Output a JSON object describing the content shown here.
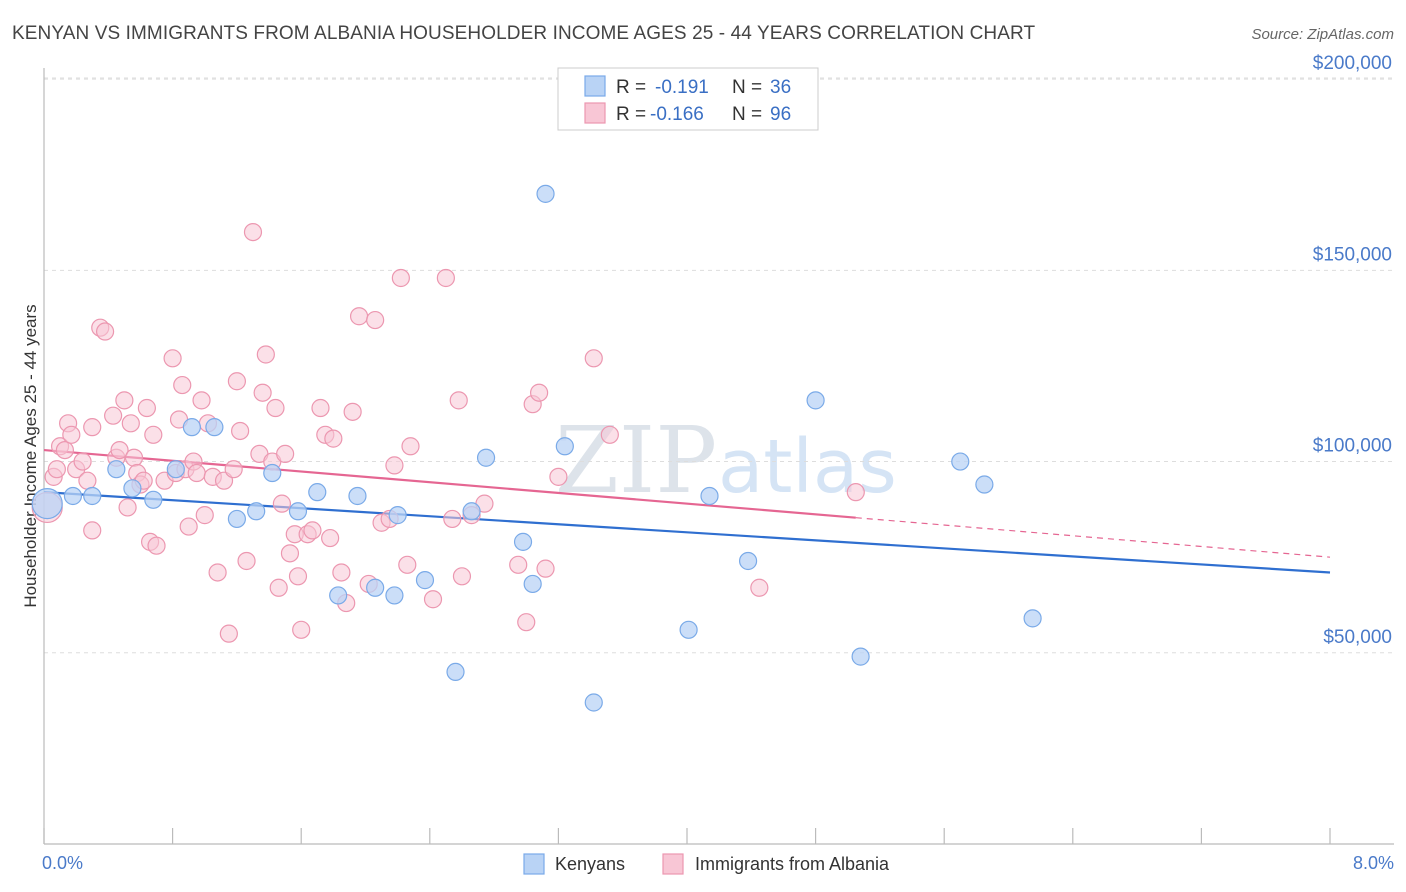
{
  "chart_data": {
    "type": "scatter",
    "title": "KENYAN VS IMMIGRANTS FROM ALBANIA HOUSEHOLDER INCOME AGES 25 - 44 YEARS CORRELATION CHART",
    "source": "Source: ZipAtlas.com",
    "ylabel": "Householder Income Ages 25 - 44 years",
    "xlabel": "",
    "xlim": [
      0,
      8
    ],
    "ylim": [
      0,
      205000
    ],
    "x_tick_labels": {
      "left": "0.0%",
      "right": "8.0%"
    },
    "y_ticks": [
      {
        "value": 50000,
        "label": "$50,000"
      },
      {
        "value": 100000,
        "label": "$100,000"
      },
      {
        "value": 150000,
        "label": "$150,000"
      },
      {
        "value": 200000,
        "label": "$200,000"
      }
    ],
    "legend": {
      "r_label": "R =",
      "n_label": "N =",
      "entries": [
        {
          "series": "Kenyans",
          "r": "-0.191",
          "n": "36"
        },
        {
          "series": "Immigrants from Albania",
          "r": "-0.166",
          "n": "96"
        }
      ]
    },
    "watermark": {
      "zip": "ZIP",
      "atlas": "atlas"
    },
    "series": [
      {
        "name": "Kenyans",
        "color": "#7aaae8",
        "fill": "#b9d3f5",
        "trend": {
          "x0": 0,
          "y0": 92000,
          "x1": 8,
          "y1": 71000,
          "solid_until": 8
        },
        "points": [
          [
            0.02,
            89000
          ],
          [
            0.18,
            91000
          ],
          [
            0.3,
            91000
          ],
          [
            0.45,
            98000
          ],
          [
            0.55,
            93000
          ],
          [
            0.68,
            90000
          ],
          [
            0.82,
            98000
          ],
          [
            0.92,
            109000
          ],
          [
            1.06,
            109000
          ],
          [
            1.2,
            85000
          ],
          [
            1.32,
            87000
          ],
          [
            1.42,
            97000
          ],
          [
            1.58,
            87000
          ],
          [
            1.7,
            92000
          ],
          [
            1.83,
            65000
          ],
          [
            1.95,
            91000
          ],
          [
            2.06,
            67000
          ],
          [
            2.18,
            65000
          ],
          [
            2.2,
            86000
          ],
          [
            2.37,
            69000
          ],
          [
            2.56,
            45000
          ],
          [
            2.66,
            87000
          ],
          [
            2.75,
            101000
          ],
          [
            2.98,
            79000
          ],
          [
            3.04,
            68000
          ],
          [
            3.12,
            170000
          ],
          [
            3.24,
            104000
          ],
          [
            3.42,
            37000
          ],
          [
            4.01,
            56000
          ],
          [
            4.14,
            91000
          ],
          [
            4.38,
            74000
          ],
          [
            4.8,
            116000
          ],
          [
            5.08,
            49000
          ],
          [
            5.7,
            100000
          ],
          [
            5.85,
            94000
          ],
          [
            6.15,
            59000
          ]
        ]
      },
      {
        "name": "Immigrants from Albania",
        "color": "#ec97b0",
        "fill": "#f8c6d5",
        "trend": {
          "x0": 0,
          "y0": 103000,
          "x1": 8,
          "y1": 75000,
          "solid_until": 5.05
        },
        "points": [
          [
            0.02,
            88000
          ],
          [
            0.06,
            96000
          ],
          [
            0.08,
            98000
          ],
          [
            0.1,
            104000
          ],
          [
            0.13,
            103000
          ],
          [
            0.15,
            110000
          ],
          [
            0.17,
            107000
          ],
          [
            0.2,
            98000
          ],
          [
            0.24,
            100000
          ],
          [
            0.27,
            95000
          ],
          [
            0.3,
            109000
          ],
          [
            0.3,
            82000
          ],
          [
            0.35,
            135000
          ],
          [
            0.38,
            134000
          ],
          [
            0.43,
            112000
          ],
          [
            0.45,
            101000
          ],
          [
            0.47,
            103000
          ],
          [
            0.5,
            116000
          ],
          [
            0.52,
            88000
          ],
          [
            0.54,
            110000
          ],
          [
            0.56,
            101000
          ],
          [
            0.58,
            97000
          ],
          [
            0.6,
            94000
          ],
          [
            0.62,
            95000
          ],
          [
            0.64,
            114000
          ],
          [
            0.66,
            79000
          ],
          [
            0.68,
            107000
          ],
          [
            0.7,
            78000
          ],
          [
            0.75,
            95000
          ],
          [
            0.8,
            127000
          ],
          [
            0.82,
            97000
          ],
          [
            0.84,
            111000
          ],
          [
            0.86,
            120000
          ],
          [
            0.88,
            98000
          ],
          [
            0.9,
            83000
          ],
          [
            0.93,
            100000
          ],
          [
            0.95,
            97000
          ],
          [
            0.98,
            116000
          ],
          [
            1.0,
            86000
          ],
          [
            1.02,
            110000
          ],
          [
            1.05,
            96000
          ],
          [
            1.08,
            71000
          ],
          [
            1.12,
            95000
          ],
          [
            1.15,
            55000
          ],
          [
            1.18,
            98000
          ],
          [
            1.2,
            121000
          ],
          [
            1.22,
            108000
          ],
          [
            1.26,
            74000
          ],
          [
            1.3,
            160000
          ],
          [
            1.34,
            102000
          ],
          [
            1.36,
            118000
          ],
          [
            1.38,
            128000
          ],
          [
            1.42,
            100000
          ],
          [
            1.44,
            114000
          ],
          [
            1.46,
            67000
          ],
          [
            1.48,
            89000
          ],
          [
            1.5,
            102000
          ],
          [
            1.53,
            76000
          ],
          [
            1.56,
            81000
          ],
          [
            1.58,
            70000
          ],
          [
            1.6,
            56000
          ],
          [
            1.64,
            81000
          ],
          [
            1.67,
            82000
          ],
          [
            1.72,
            114000
          ],
          [
            1.75,
            107000
          ],
          [
            1.78,
            80000
          ],
          [
            1.8,
            106000
          ],
          [
            1.85,
            71000
          ],
          [
            1.88,
            63000
          ],
          [
            1.92,
            113000
          ],
          [
            1.96,
            138000
          ],
          [
            2.02,
            68000
          ],
          [
            2.06,
            137000
          ],
          [
            2.1,
            84000
          ],
          [
            2.15,
            85000
          ],
          [
            2.18,
            99000
          ],
          [
            2.22,
            148000
          ],
          [
            2.26,
            73000
          ],
          [
            2.28,
            104000
          ],
          [
            2.42,
            64000
          ],
          [
            2.5,
            148000
          ],
          [
            2.54,
            85000
          ],
          [
            2.58,
            116000
          ],
          [
            2.6,
            70000
          ],
          [
            2.66,
            86000
          ],
          [
            2.74,
            89000
          ],
          [
            2.95,
            73000
          ],
          [
            3.0,
            58000
          ],
          [
            3.04,
            115000
          ],
          [
            3.08,
            118000
          ],
          [
            3.12,
            72000
          ],
          [
            3.2,
            96000
          ],
          [
            3.42,
            127000
          ],
          [
            3.52,
            107000
          ],
          [
            4.45,
            67000
          ],
          [
            5.05,
            92000
          ]
        ]
      }
    ]
  }
}
